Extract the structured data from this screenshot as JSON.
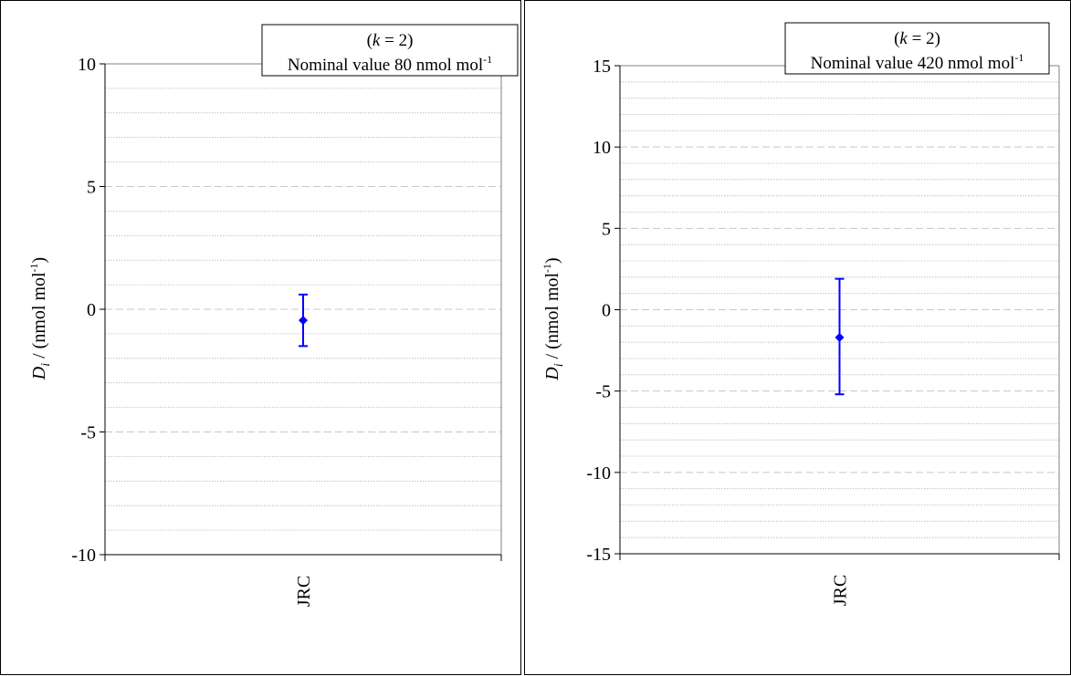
{
  "chart_data": [
    {
      "type": "scatter",
      "title": "",
      "annotation": {
        "line1_prefix": "(",
        "line1_var": "k",
        "line1_rest": " = 2)",
        "line2": "Nominal value 80 nmol mol",
        "line2_sup": "-1"
      },
      "ylabel": {
        "var": "D",
        "sub": "i",
        "text": " / (nmol mol",
        "sup": "-1",
        "close": ")"
      },
      "xlabel": "",
      "categories": [
        "JRC"
      ],
      "ylim": [
        -10,
        10
      ],
      "y_ticks": [
        -10,
        -5,
        0,
        5,
        10
      ],
      "y_tick_labels": [
        "-10",
        "-5",
        "0",
        "5",
        "10"
      ],
      "grid": "horizontal dashed major, dotted minor",
      "series": [
        {
          "values": [
            -0.45
          ],
          "err_low": [
            -1.5
          ],
          "err_high": [
            0.6
          ],
          "color": "#0000ff"
        }
      ]
    },
    {
      "type": "scatter",
      "title": "",
      "annotation": {
        "line1_prefix": "(",
        "line1_var": "k",
        "line1_rest": " = 2)",
        "line2": "Nominal value 420 nmol mol",
        "line2_sup": "-1"
      },
      "ylabel": {
        "var": "D",
        "sub": "i",
        "text": " / (nmol mol",
        "sup": "-1",
        "close": ")"
      },
      "xlabel": "",
      "categories": [
        "JRC"
      ],
      "ylim": [
        -15,
        15
      ],
      "y_ticks": [
        -15,
        -10,
        -5,
        0,
        5,
        10,
        15
      ],
      "y_tick_labels": [
        "-15",
        "-10",
        "-5",
        "0",
        "5",
        "10",
        "15"
      ],
      "grid": "horizontal dashed major, dotted minor",
      "series": [
        {
          "values": [
            -1.7
          ],
          "err_low": [
            -5.2
          ],
          "err_high": [
            1.9
          ],
          "color": "#0000ff"
        }
      ]
    }
  ]
}
